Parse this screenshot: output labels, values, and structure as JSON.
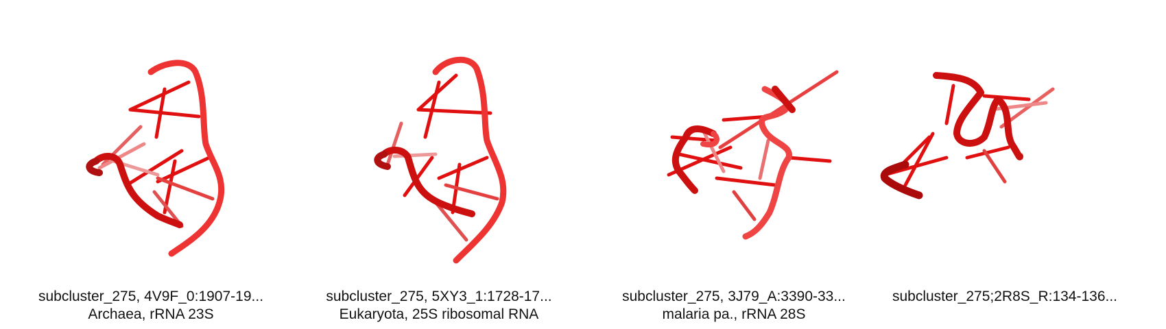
{
  "colors": {
    "rna_main": "#dd1111",
    "rna_dark": "#aa0a0a",
    "rna_light": "#ee5555",
    "text": "#111111",
    "background": "#ffffff"
  },
  "panels": [
    {
      "title": "subcluster_275, 4V9F_0:1907-19...",
      "subtitle": "Archaea, rRNA 23S"
    },
    {
      "title": "subcluster_275, 5XY3_1:1728-17...",
      "subtitle": "Eukaryota, 25S ribosomal RNA"
    },
    {
      "title": "subcluster_275, 3J79_A:3390-33...",
      "subtitle": "malaria pa., rRNA 28S"
    },
    {
      "title": "subcluster_275;2R8S_R:134-136...",
      "subtitle": ""
    }
  ]
}
